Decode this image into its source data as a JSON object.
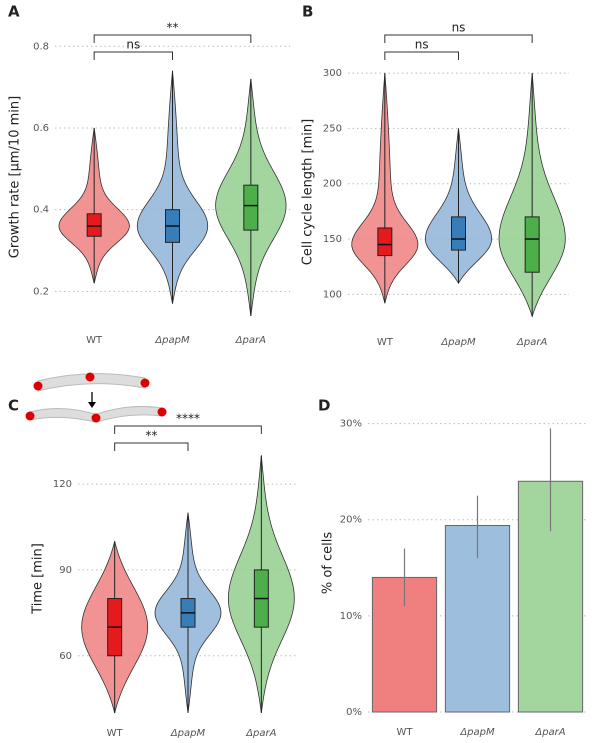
{
  "chart_data": [
    {
      "type": "violin",
      "panel": "A",
      "ylabel": "Growth rate [μm/10 min]",
      "categories": [
        "WT",
        "ΔpapM",
        "ΔparA"
      ],
      "boxes": [
        {
          "min": 0.22,
          "q1": 0.335,
          "median": 0.36,
          "q3": 0.39,
          "max": 0.6
        },
        {
          "min": 0.17,
          "q1": 0.32,
          "median": 0.36,
          "q3": 0.4,
          "max": 0.74
        },
        {
          "min": 0.14,
          "q1": 0.35,
          "median": 0.41,
          "q3": 0.46,
          "max": 0.72
        }
      ],
      "colors": [
        "#e41a1c",
        "#377eb8",
        "#4daf4a"
      ],
      "fills": [
        "#f08080",
        "#8fb4d8",
        "#93cf8e"
      ],
      "ylim": [
        0.13,
        0.83
      ],
      "yticks": [
        0.2,
        0.4,
        0.6,
        0.8
      ],
      "grid": true,
      "comparisons": [
        {
          "pair": [
            0,
            1
          ],
          "label": "ns"
        },
        {
          "pair": [
            0,
            2
          ],
          "label": "**"
        }
      ]
    },
    {
      "type": "violin",
      "panel": "B",
      "ylabel": "Cell cycle length [min]",
      "categories": [
        "WT",
        "ΔpapM",
        "ΔparA"
      ],
      "boxes": [
        {
          "min": 92,
          "q1": 135,
          "median": 145,
          "q3": 160,
          "max": 300
        },
        {
          "min": 110,
          "q1": 140,
          "median": 150,
          "q3": 170,
          "max": 250
        },
        {
          "min": 80,
          "q1": 120,
          "median": 150,
          "q3": 170,
          "max": 300
        }
      ],
      "colors": [
        "#e41a1c",
        "#377eb8",
        "#4daf4a"
      ],
      "fills": [
        "#f08080",
        "#8fb4d8",
        "#93cf8e"
      ],
      "ylim": [
        75,
        310
      ],
      "yticks": [
        100,
        150,
        200,
        250,
        300
      ],
      "grid": true,
      "comparisons": [
        {
          "pair": [
            0,
            1
          ],
          "label": "ns"
        },
        {
          "pair": [
            0,
            2
          ],
          "label": "ns"
        }
      ]
    },
    {
      "type": "violin",
      "panel": "C",
      "ylabel": "Time [min]",
      "categories": [
        "WT",
        "ΔpapM",
        "ΔparA"
      ],
      "boxes": [
        {
          "min": 40,
          "q1": 60,
          "median": 70,
          "q3": 80,
          "max": 100
        },
        {
          "min": 40,
          "q1": 70,
          "median": 75,
          "q3": 80,
          "max": 110
        },
        {
          "min": 40,
          "q1": 70,
          "median": 80,
          "q3": 90,
          "max": 130
        }
      ],
      "colors": [
        "#e41a1c",
        "#377eb8",
        "#4daf4a"
      ],
      "fills": [
        "#f08080",
        "#8fb4d8",
        "#93cf8e"
      ],
      "ylim": [
        40,
        134
      ],
      "yticks": [
        60,
        90,
        120
      ],
      "grid": true,
      "comparisons": [
        {
          "pair": [
            0,
            1
          ],
          "label": "**"
        },
        {
          "pair": [
            0,
            2
          ],
          "label": "****"
        }
      ]
    },
    {
      "type": "bar",
      "panel": "D",
      "ylabel": "% of cells",
      "categories": [
        "WT",
        "ΔpapM",
        "ΔparA"
      ],
      "values": [
        14,
        19.4,
        24
      ],
      "ci": [
        [
          11,
          17
        ],
        [
          16,
          22.5
        ],
        [
          18.8,
          29.5
        ]
      ],
      "colors": [
        "#f08080",
        "#9dbedd",
        "#a3d69e"
      ],
      "ylim": [
        0,
        31
      ],
      "yticks": [
        {
          "value": 0,
          "label": "0%"
        },
        {
          "value": 10,
          "label": "10%"
        },
        {
          "value": 20,
          "label": "20%"
        },
        {
          "value": 30,
          "label": "30%"
        }
      ],
      "grid": true
    }
  ]
}
